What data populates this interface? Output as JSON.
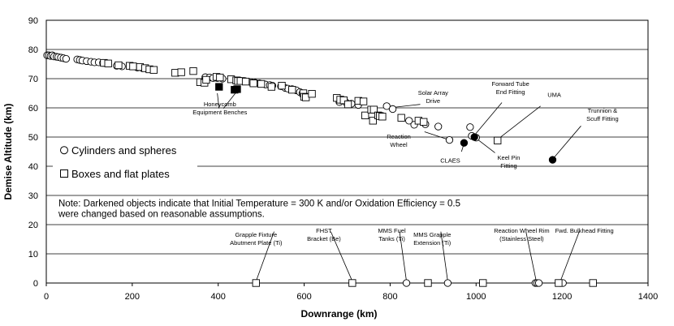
{
  "chart_data": {
    "type": "scatter",
    "xlabel": "Downrange (km)",
    "ylabel": "Demise Altitude (km)",
    "xlim": [
      0,
      1400
    ],
    "ylim": [
      0,
      90
    ],
    "x_ticks": [
      0,
      200,
      400,
      600,
      800,
      1000,
      1200,
      1400
    ],
    "y_ticks": [
      0,
      10,
      20,
      30,
      40,
      50,
      60,
      70,
      80,
      90
    ],
    "grid": "horizontal",
    "legend_position": "left",
    "legend": [
      {
        "marker": "circle",
        "label": "Cylinders and spheres"
      },
      {
        "marker": "square",
        "label": "Boxes and flat plates"
      }
    ],
    "note_lines": [
      "Note: Darkened objects indicate that Initial Temperature = 300 K and/or Oxidation Efficiency = 0.5",
      "were changed based on reasonable assumptions."
    ],
    "series": [
      {
        "marker": "circle",
        "filled": false,
        "points": [
          [
            2,
            78
          ],
          [
            6,
            78
          ],
          [
            10,
            77.8
          ],
          [
            14,
            78
          ],
          [
            18,
            77.6
          ],
          [
            24,
            77.5
          ],
          [
            28,
            77.4
          ],
          [
            34,
            77.2
          ],
          [
            40,
            77
          ],
          [
            46,
            76.8
          ],
          [
            72,
            76.6
          ],
          [
            78,
            76.4
          ],
          [
            84,
            76.2
          ],
          [
            94,
            76
          ],
          [
            104,
            75.8
          ],
          [
            112,
            75.6
          ],
          [
            122,
            75.6
          ],
          [
            132,
            75.4
          ],
          [
            164,
            74.4
          ],
          [
            176,
            74.2
          ],
          [
            212,
            73.8
          ],
          [
            224,
            73.6
          ],
          [
            234,
            73.4
          ],
          [
            370,
            70.5
          ],
          [
            380,
            70.4
          ],
          [
            388,
            70.2
          ],
          [
            398,
            70.2
          ],
          [
            410,
            70
          ],
          [
            450,
            69.4
          ],
          [
            462,
            69.2
          ],
          [
            476,
            68.8
          ],
          [
            486,
            68.6
          ],
          [
            496,
            68.4
          ],
          [
            510,
            68
          ],
          [
            520,
            67.8
          ],
          [
            526,
            67.6
          ],
          [
            546,
            67.4
          ],
          [
            556,
            66.8
          ],
          [
            562,
            66.6
          ],
          [
            572,
            66.4
          ],
          [
            582,
            66
          ],
          [
            590,
            65.4
          ],
          [
            596,
            65
          ],
          [
            682,
            62
          ],
          [
            698,
            61.8
          ],
          [
            710,
            61.4
          ],
          [
            726,
            61
          ],
          [
            792,
            60.6
          ],
          [
            806,
            59.6
          ],
          [
            844,
            55.6
          ],
          [
            856,
            54.2
          ],
          [
            882,
            54.4
          ],
          [
            912,
            53.6
          ],
          [
            938,
            49
          ],
          [
            986,
            53.4
          ],
          [
            990,
            50.4
          ],
          [
            1000,
            49.8
          ]
        ]
      },
      {
        "marker": "square",
        "filled": false,
        "points": [
          [
            134,
            75.4
          ],
          [
            144,
            75.2
          ],
          [
            168,
            74.6
          ],
          [
            194,
            74.4
          ],
          [
            202,
            74.2
          ],
          [
            218,
            74
          ],
          [
            230,
            73.6
          ],
          [
            240,
            73.2
          ],
          [
            250,
            73
          ],
          [
            300,
            72
          ],
          [
            314,
            72.2
          ],
          [
            342,
            72.6
          ],
          [
            358,
            68.8
          ],
          [
            368,
            68.6
          ],
          [
            372,
            69.6
          ],
          [
            396,
            70.6
          ],
          [
            404,
            70.4
          ],
          [
            430,
            69.8
          ],
          [
            442,
            69.4
          ],
          [
            446,
            69.2
          ],
          [
            452,
            69.2
          ],
          [
            464,
            69
          ],
          [
            482,
            68.4
          ],
          [
            500,
            68.2
          ],
          [
            524,
            67.2
          ],
          [
            548,
            67.6
          ],
          [
            572,
            66.2
          ],
          [
            598,
            65
          ],
          [
            600,
            63.8
          ],
          [
            604,
            63.6
          ],
          [
            618,
            64.8
          ],
          [
            676,
            63.4
          ],
          [
            684,
            62.8
          ],
          [
            692,
            62.6
          ],
          [
            702,
            61.2
          ],
          [
            726,
            62.4
          ],
          [
            738,
            62.2
          ],
          [
            742,
            57.4
          ],
          [
            756,
            59.4
          ],
          [
            760,
            55.6
          ],
          [
            762,
            59.4
          ],
          [
            772,
            57.4
          ],
          [
            776,
            57.2
          ],
          [
            782,
            57
          ],
          [
            826,
            56.6
          ],
          [
            866,
            55.6
          ],
          [
            878,
            55.2
          ],
          [
            1050,
            48.8
          ]
        ]
      },
      {
        "marker": "circle",
        "filled": true,
        "points": [
          [
            972,
            48
          ],
          [
            996,
            50
          ],
          [
            1178,
            42.2
          ]
        ]
      },
      {
        "marker": "square",
        "filled": true,
        "points": [
          [
            402,
            67.2
          ],
          [
            438,
            66.2
          ],
          [
            444,
            66.4
          ]
        ]
      },
      {
        "marker": "circle",
        "filled": false,
        "points": [
          [
            838,
            0
          ],
          [
            934,
            0
          ],
          [
            1138,
            0
          ],
          [
            1142,
            0
          ],
          [
            1146,
            0
          ],
          [
            1196,
            0
          ],
          [
            1202,
            0
          ]
        ]
      },
      {
        "marker": "square",
        "filled": false,
        "points": [
          [
            488,
            0
          ],
          [
            712,
            0
          ],
          [
            888,
            0
          ],
          [
            1016,
            0
          ],
          [
            1192,
            0
          ],
          [
            1272,
            0
          ]
        ]
      }
    ],
    "annotations": [
      {
        "lines": [
          "Honeycomb",
          "Equipment Benches"
        ],
        "x": 404,
        "y": 60.5
      },
      {
        "lines": [
          "Solar Array",
          "Drive"
        ],
        "x": 900,
        "y": 64.5
      },
      {
        "lines": [
          "Forward Tube",
          "End Fitting"
        ],
        "x": 1080,
        "y": 67.5
      },
      {
        "lines": [
          "UMA"
        ],
        "x": 1182,
        "y": 63.8
      },
      {
        "lines": [
          "Trunnion &",
          "Scuff Fitting"
        ],
        "x": 1294,
        "y": 58.4
      },
      {
        "lines": [
          "Reaction",
          "Wheel"
        ],
        "x": 820,
        "y": 49.4
      },
      {
        "lines": [
          "CLAES"
        ],
        "x": 940,
        "y": 41.2
      },
      {
        "lines": [
          "Keel Pin",
          "Fitting"
        ],
        "x": 1076,
        "y": 42.2
      },
      {
        "lines": [
          "Grapple Fixture",
          "Abutment Plate (Ti)"
        ],
        "x": 488,
        "y": 15.8
      },
      {
        "lines": [
          "FHST",
          "Bracket (Be)"
        ],
        "x": 646,
        "y": 17.2
      },
      {
        "lines": [
          "MMS Fuel",
          "Tanks (Ti)"
        ],
        "x": 804,
        "y": 17.2
      },
      {
        "lines": [
          "MMS Grapple",
          "Extension (Ti)"
        ],
        "x": 898,
        "y": 15.8
      },
      {
        "lines": [
          "Reaction Wheel Rim",
          "(Stainless Steel)"
        ],
        "x": 1106,
        "y": 17.2
      },
      {
        "lines": [
          "Fwd. Bulkhead Fitting"
        ],
        "x": 1252,
        "y": 17.2
      }
    ],
    "leaders": [
      [
        [
          398,
          65
        ],
        [
          402,
          59.8
        ]
      ],
      [
        [
          440,
          65
        ],
        [
          412,
          59.8
        ]
      ],
      [
        [
          870,
          61.2
        ],
        [
          810,
          60.2
        ]
      ],
      [
        [
          1060,
          61.8
        ],
        [
          996,
          50.6
        ]
      ],
      [
        [
          1150,
          60.6
        ],
        [
          1050,
          49.2
        ]
      ],
      [
        [
          1244,
          53.8
        ],
        [
          1178,
          42.4
        ]
      ],
      [
        [
          880,
          51.8
        ],
        [
          938,
          49
        ]
      ],
      [
        [
          966,
          45
        ],
        [
          972,
          47.8
        ]
      ],
      [
        [
          1044,
          44.6
        ],
        [
          998,
          49.8
        ]
      ],
      [
        [
          530,
          17.6
        ],
        [
          488,
          0.6
        ]
      ],
      [
        [
          662,
          17.6
        ],
        [
          712,
          0.6
        ]
      ],
      [
        [
          822,
          17.6
        ],
        [
          838,
          0.6
        ]
      ],
      [
        [
          918,
          17.6
        ],
        [
          934,
          0.6
        ]
      ],
      [
        [
          1116,
          17.6
        ],
        [
          1140,
          0.6
        ]
      ],
      [
        [
          1240,
          17.6
        ],
        [
          1196,
          0.6
        ]
      ]
    ]
  }
}
